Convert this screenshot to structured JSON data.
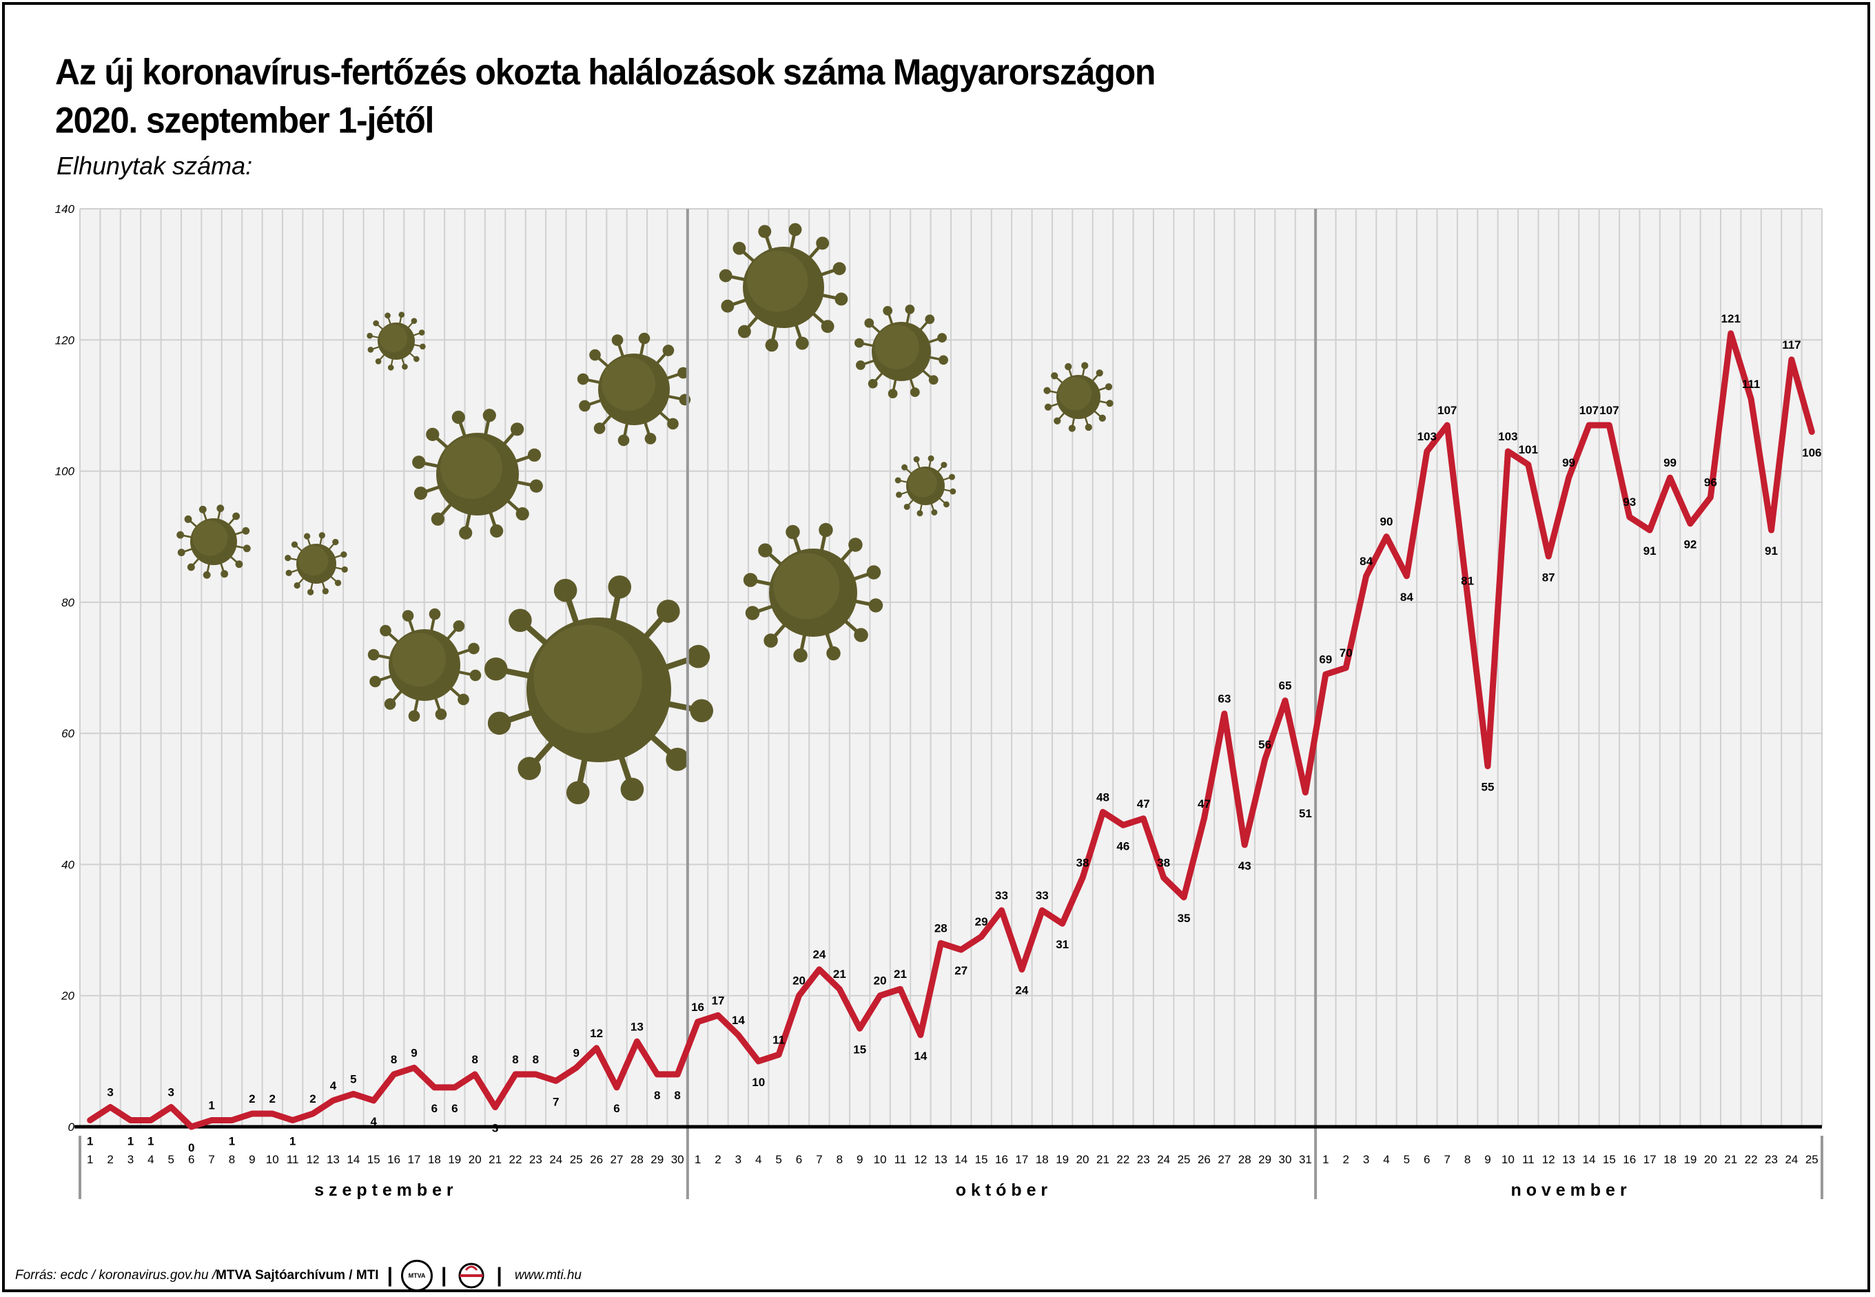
{
  "title_line1": "Az új koronavírus-fertőzés okozta halálozások száma Magyarországon",
  "title_line2": "2020. szeptember 1-jétől",
  "subtitle": "Elhunytak száma:",
  "footer": {
    "source": "Forrás: ecdc / koronavirus.gov.hu / ",
    "archive": "MTVA Sajtóarchívum / MTI",
    "logo1": "MTVA",
    "website": "www.mti.hu"
  },
  "colors": {
    "line": "#c41e2f",
    "grid": "#d0d0d0",
    "plot_bg": "#f2f2f2",
    "virus": "#5d5a2a"
  },
  "chart_data": {
    "type": "line",
    "ylim": [
      0,
      140
    ],
    "yticks": [
      0,
      20,
      40,
      60,
      80,
      100,
      120,
      140
    ],
    "months": [
      {
        "name": "s z e p t e m b e r",
        "days": 30
      },
      {
        "name": "o k t ó b e r",
        "days": 31
      },
      {
        "name": "n o v e m b e r",
        "days": 25
      }
    ],
    "series": [
      {
        "values": [
          1,
          3,
          1,
          1,
          3,
          0,
          1,
          1,
          2,
          2,
          1,
          2,
          4,
          5,
          4,
          8,
          9,
          6,
          6,
          8,
          3,
          8,
          8,
          7,
          9,
          12,
          6,
          13,
          8,
          8,
          16,
          17,
          14,
          10,
          11,
          20,
          24,
          21,
          15,
          20,
          21,
          14,
          28,
          27,
          29,
          33,
          24,
          33,
          31,
          38,
          48,
          46,
          47,
          38,
          35,
          47,
          63,
          43,
          56,
          65,
          51,
          69,
          70,
          84,
          90,
          84,
          103,
          107,
          81,
          55,
          103,
          101,
          87,
          99,
          107,
          107,
          93,
          91,
          99,
          92,
          96,
          121,
          111,
          91,
          117,
          106
        ]
      }
    ]
  }
}
